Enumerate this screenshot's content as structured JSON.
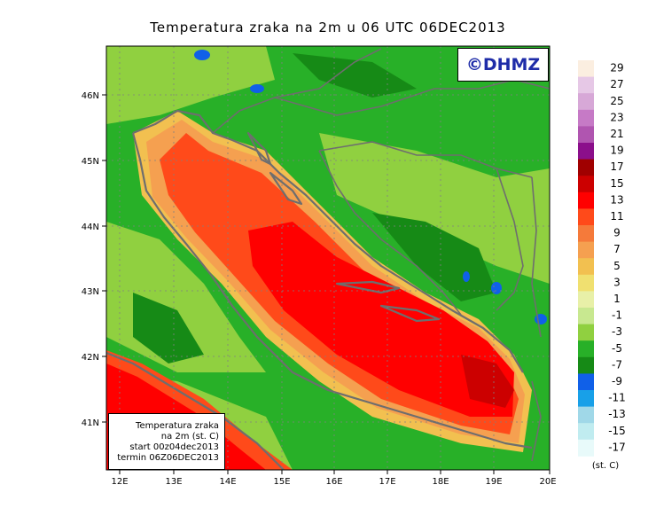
{
  "title": "Temperatura zraka na 2m u 06 UTC 06DEC2013",
  "logo": "©DHMZ",
  "info_box": {
    "line1": "Temperatura zraka",
    "line2": "na 2m (st. C)",
    "line3": "start 00z04dec2013",
    "line4": "termin 06Z06DEC2013"
  },
  "axes": {
    "lon_labels": [
      "12E",
      "13E",
      "14E",
      "15E",
      "16E",
      "17E",
      "18E",
      "19E",
      "20E"
    ],
    "lat_labels": [
      "46N",
      "45N",
      "44N",
      "43N",
      "42N",
      "41N"
    ]
  },
  "colorbar": {
    "labels": [
      "29",
      "27",
      "25",
      "23",
      "21",
      "19",
      "17",
      "15",
      "13",
      "11",
      "9",
      "7",
      "5",
      "3",
      "1",
      "-1",
      "-3",
      "-5",
      "-7",
      "-9",
      "-11",
      "-13",
      "-15",
      "-17"
    ],
    "unit": "(st. C)",
    "colors": [
      "#fbeee0",
      "#e6c8e6",
      "#d7a8d7",
      "#c67ac6",
      "#b055b0",
      "#8b0f8b",
      "#a00000",
      "#cc0000",
      "#ff0000",
      "#ff4a1a",
      "#f57a3a",
      "#f5a050",
      "#f2c050",
      "#f0e070",
      "#e8f0a8",
      "#c8e890",
      "#90d040",
      "#28b028",
      "#168a16",
      "#1060e8",
      "#18a0e8",
      "#a0d8e8",
      "#c0ecf0",
      "#e8fafa"
    ]
  },
  "colors": {
    "land_green": "#28b028",
    "land_light": "#90d040",
    "sea_warm": "#ff0000",
    "sea_orange": "#ff4a1a",
    "coast": "#6e6e6e"
  }
}
